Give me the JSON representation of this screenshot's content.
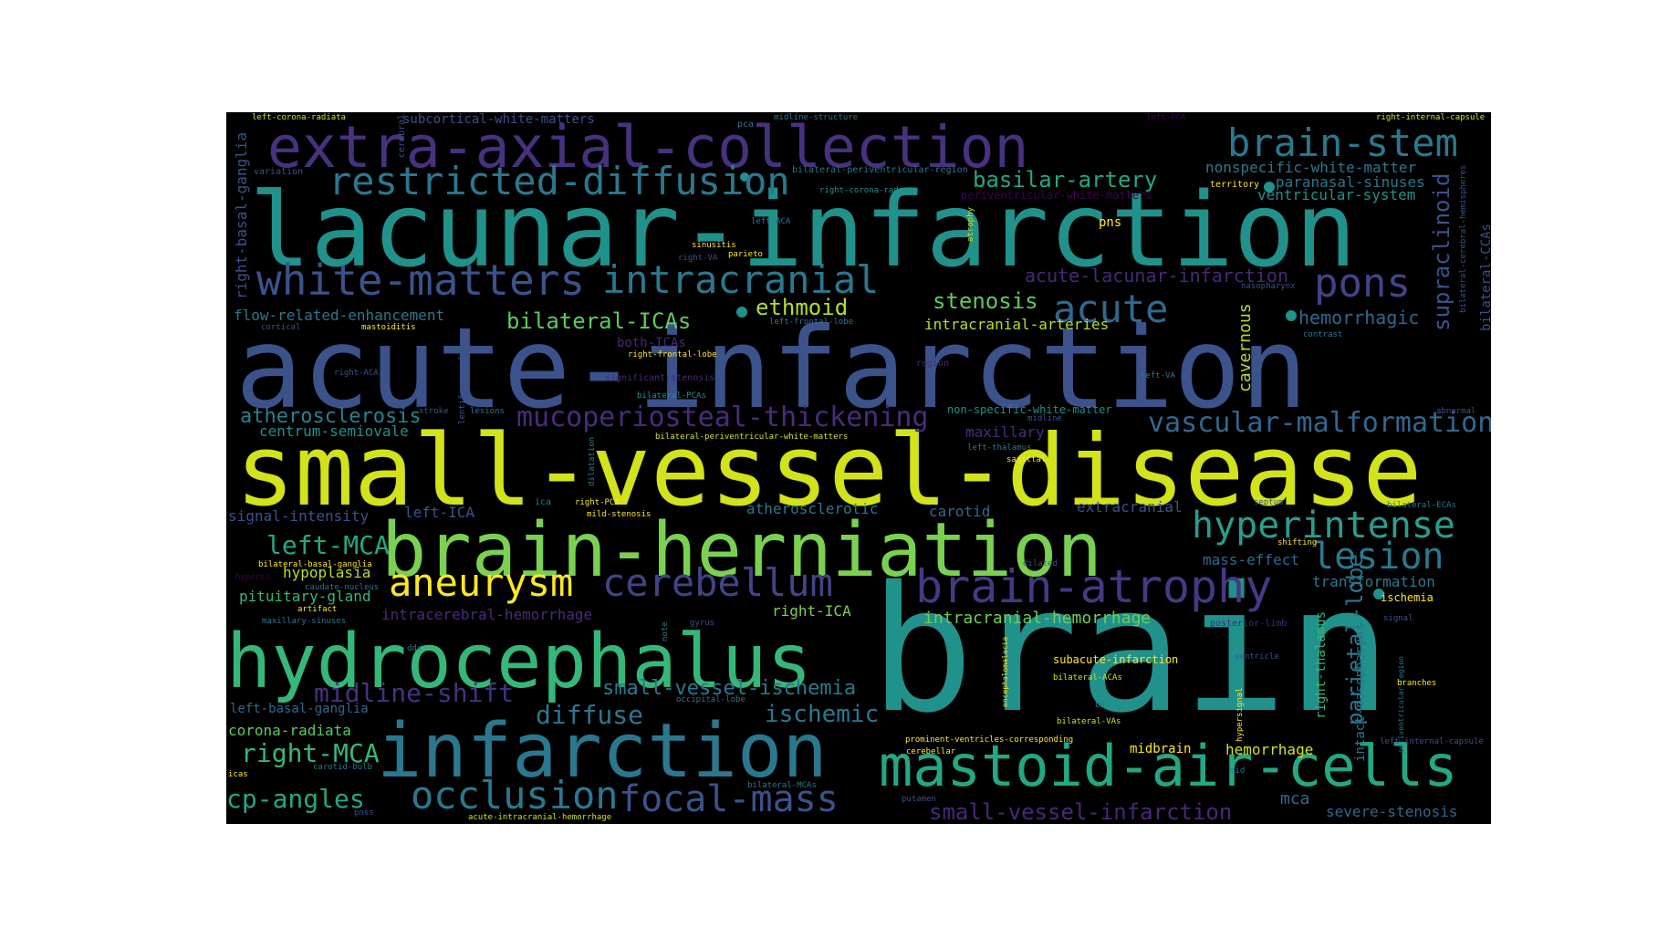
{
  "palette": {
    "background": "#000000",
    "colors": [
      "#440154",
      "#482878",
      "#3e4989",
      "#31688e",
      "#26828e",
      "#1f9e89",
      "#35b779",
      "#6ece58",
      "#b5de2b",
      "#fde725"
    ]
  },
  "words": [
    {
      "text": "brain",
      "color": "#21918c"
    },
    {
      "text": "small-vessel-disease",
      "color": "#d2e21b"
    },
    {
      "text": "acute-infarction",
      "color": "#3b528b"
    },
    {
      "text": "lacunar-infarction",
      "color": "#21918c"
    },
    {
      "text": "extra-axial-collection",
      "color": "#46327e"
    },
    {
      "text": "brain-herniation",
      "color": "#7ad151"
    },
    {
      "text": "hydrocephalus",
      "color": "#35b779"
    },
    {
      "text": "infarction",
      "color": "#2a788e"
    },
    {
      "text": "mastoid-air-cells",
      "color": "#22a884"
    },
    {
      "text": "brain-atrophy",
      "color": "#443983"
    },
    {
      "text": "white-matters",
      "color": "#3b528b"
    },
    {
      "text": "restricted-diffusion",
      "color": "#2a788e"
    },
    {
      "text": "intracranial",
      "color": "#2a788e"
    },
    {
      "text": "brain-stem",
      "color": "#2a788e"
    },
    {
      "text": "pons",
      "color": "#414487"
    },
    {
      "text": "acute",
      "color": "#31688e"
    },
    {
      "text": "aneurysm",
      "color": "#fde725"
    },
    {
      "text": "cerebellum",
      "color": "#414487"
    },
    {
      "text": "hyperintense",
      "color": "#2a9d8e"
    },
    {
      "text": "lesion",
      "color": "#2a788e"
    },
    {
      "text": "occlusion",
      "color": "#2a788e"
    },
    {
      "text": "focal-mass",
      "color": "#3b528b"
    },
    {
      "text": "vascular-malformation",
      "color": "#31688e"
    },
    {
      "text": "mucoperiosteal-thickening",
      "color": "#472d7b"
    },
    {
      "text": "midline-shift",
      "color": "#46327e"
    },
    {
      "text": "left-MCA",
      "color": "#22a884"
    },
    {
      "text": "right-MCA",
      "color": "#35b779"
    },
    {
      "text": "diffuse",
      "color": "#2a788e"
    },
    {
      "text": "ischemic",
      "color": "#2a788e"
    },
    {
      "text": "cp-angles",
      "color": "#22a884"
    },
    {
      "text": "basilar-artery",
      "color": "#22a884"
    },
    {
      "text": "stenosis",
      "color": "#5ec962"
    },
    {
      "text": "ethmoid",
      "color": "#b5de2b"
    },
    {
      "text": "bilateral-ICAs",
      "color": "#5ec962"
    },
    {
      "text": "atherosclerosis",
      "color": "#26828e"
    },
    {
      "text": "supraclinoid",
      "color": "#3b528b"
    },
    {
      "text": "parietal-lobe",
      "color": "#2a788e"
    },
    {
      "text": "hemorrhagic",
      "color": "#31688e"
    },
    {
      "text": "small-vessel-ischemia",
      "color": "#2a788e"
    },
    {
      "text": "small-vessel-infarction",
      "color": "#482878"
    },
    {
      "text": "intracranial-hemorrhage",
      "color": "#6ece58"
    },
    {
      "text": "acute-lacunar-infarction",
      "color": "#482878"
    },
    {
      "text": "nonspecific-white-matter",
      "color": "#2a788e"
    },
    {
      "text": "paranasal-sinuses",
      "color": "#2a788e"
    },
    {
      "text": "ventricular-system",
      "color": "#21918c"
    },
    {
      "text": "flow-related-enhancement",
      "color": "#2a788e"
    },
    {
      "text": "centrum-semiovale",
      "color": "#21918c"
    },
    {
      "text": "intracranial-arteries",
      "color": "#b5de2b"
    },
    {
      "text": "cavernous",
      "color": "#b5de2b"
    },
    {
      "text": "right-basal-ganglia",
      "color": "#3b528b"
    },
    {
      "text": "signal-intensity",
      "color": "#3b528b"
    },
    {
      "text": "left-ICA",
      "color": "#3b528b"
    },
    {
      "text": "right-ICA",
      "color": "#7ad151"
    },
    {
      "text": "carotid",
      "color": "#31688e"
    },
    {
      "text": "atherosclerotic",
      "color": "#2a788e"
    },
    {
      "text": "extracranial",
      "color": "#3b528b"
    },
    {
      "text": "mass-effect",
      "color": "#31688e"
    },
    {
      "text": "transformation",
      "color": "#2a788e"
    },
    {
      "text": "hypoplasia",
      "color": "#b5de2b"
    },
    {
      "text": "pituitary-gland",
      "color": "#35b779"
    },
    {
      "text": "intracerebral-hemorrhage",
      "color": "#472d7b"
    },
    {
      "text": "left-basal-ganglia",
      "color": "#31688e"
    },
    {
      "text": "corona-radiata",
      "color": "#5ec962"
    },
    {
      "text": "mca",
      "color": "#31688e"
    },
    {
      "text": "severe-stenosis",
      "color": "#31688e"
    },
    {
      "text": "hemorrhage",
      "color": "#d2e21b"
    },
    {
      "text": "midbrain",
      "color": "#fde725"
    },
    {
      "text": "right-thalamus",
      "color": "#35b779"
    },
    {
      "text": "intact-nasopharynx",
      "color": "#2a788e"
    },
    {
      "text": "maxillary",
      "color": "#472d7b"
    },
    {
      "text": "subacute-infarction",
      "color": "#fde725"
    },
    {
      "text": "both-ICAs",
      "color": "#482878"
    },
    {
      "text": "non-specific-white-matter",
      "color": "#21918c"
    },
    {
      "text": "subcortical-white-matters",
      "color": "#3b528b"
    },
    {
      "text": "bilateral-CCAs",
      "color": "#3b528b"
    },
    {
      "text": "ischemia",
      "color": "#fde725"
    },
    {
      "text": "pns",
      "color": "#fde725"
    },
    {
      "text": "territory",
      "color": "#fde725"
    },
    {
      "text": "left-corona-radiata",
      "color": "#d2e21b"
    },
    {
      "text": "cerebral",
      "color": "#3b528b"
    },
    {
      "text": "midline-structure",
      "color": "#2a788e"
    },
    {
      "text": "pca",
      "color": "#2a788e"
    },
    {
      "text": "right-internal-capsule",
      "color": "#d2e21b"
    },
    {
      "text": "left-PCA",
      "color": "#440154"
    },
    {
      "text": "variation",
      "color": "#3b528b"
    },
    {
      "text": "bilateral-periventricular-region",
      "color": "#2a788e"
    },
    {
      "text": "right-corona-radiata",
      "color": "#21918c"
    },
    {
      "text": "periventricular-white-matters",
      "color": "#440154"
    },
    {
      "text": "bilateral-cerebral-hemispheres",
      "color": "#3b528b"
    },
    {
      "text": "left-ACA",
      "color": "#2a788e"
    },
    {
      "text": "atrophy",
      "color": "#d2e21b"
    },
    {
      "text": "sinusitis",
      "color": "#fde725"
    },
    {
      "text": "right-VA",
      "color": "#3b528b"
    },
    {
      "text": "parieto",
      "color": "#fde725"
    },
    {
      "text": "left-frontal-lobe",
      "color": "#2a788e"
    },
    {
      "text": "nasopharynx",
      "color": "#3b528b"
    },
    {
      "text": "contrast",
      "color": "#2a788e"
    },
    {
      "text": "mastoiditis",
      "color": "#fde725"
    },
    {
      "text": "cortical",
      "color": "#3b528b"
    },
    {
      "text": "right-frontal-lobe",
      "color": "#fde725"
    },
    {
      "text": "right-ACA",
      "color": "#3b528b"
    },
    {
      "text": "significant-stenosis",
      "color": "#482878"
    },
    {
      "text": "region",
      "color": "#482878"
    },
    {
      "text": "left-VA",
      "color": "#2a788e"
    },
    {
      "text": "lentiform-nucleus",
      "color": "#3b528b"
    },
    {
      "text": "stroke",
      "color": "#3b528b"
    },
    {
      "text": "lesions",
      "color": "#2a788e"
    },
    {
      "text": "bilateral-PCAs",
      "color": "#21918c"
    },
    {
      "text": "midline",
      "color": "#3b528b"
    },
    {
      "text": "abnormal",
      "color": "#3b528b"
    },
    {
      "text": "bilateral-periventricular-white-matters",
      "color": "#d2e21b"
    },
    {
      "text": "left-thalamus",
      "color": "#2a788e"
    },
    {
      "text": "sagittal",
      "color": "#fde725"
    },
    {
      "text": "dilatation",
      "color": "#2a788e"
    },
    {
      "text": "ica",
      "color": "#2a788e"
    },
    {
      "text": "right-PCA",
      "color": "#fde725"
    },
    {
      "text": "mild-stenosis",
      "color": "#fde725"
    },
    {
      "text": "septum",
      "color": "#3b528b"
    },
    {
      "text": "bilateral-ECAs",
      "color": "#2a788e"
    },
    {
      "text": "bilateral-basal-ganglia",
      "color": "#fde725"
    },
    {
      "text": "shifting",
      "color": "#fde725"
    },
    {
      "text": "dilated",
      "color": "#3b528b"
    },
    {
      "text": "hypersi",
      "color": "#440154"
    },
    {
      "text": "caudate-nucleus",
      "color": "#2a788e"
    },
    {
      "text": "artifact",
      "color": "#fde725"
    },
    {
      "text": "maxillary-sinuses",
      "color": "#2a788e"
    },
    {
      "text": "gyrus",
      "color": "#3b528b"
    },
    {
      "text": "note",
      "color": "#2a788e"
    },
    {
      "text": "posterior-limb",
      "color": "#482878"
    },
    {
      "text": "signal",
      "color": "#3b528b"
    },
    {
      "text": "ddx",
      "color": "#2a788e"
    },
    {
      "text": "encephalomalacia",
      "color": "#fde725"
    },
    {
      "text": "bilateral-ACAs",
      "color": "#d2e21b"
    },
    {
      "text": "ventricle",
      "color": "#3b528b"
    },
    {
      "text": "occipital-lobe",
      "color": "#2a788e"
    },
    {
      "text": "ba",
      "color": "#2a788e"
    },
    {
      "text": "periventricular-region",
      "color": "#2a788e"
    },
    {
      "text": "branches",
      "color": "#fde725"
    },
    {
      "text": "hypersignal",
      "color": "#fde725"
    },
    {
      "text": "bilateral-VAs",
      "color": "#d2e21b"
    },
    {
      "text": "prominent-ventricles-corresponding",
      "color": "#fde725"
    },
    {
      "text": "cerebellar",
      "color": "#fde725"
    },
    {
      "text": "left-internal-capsule",
      "color": "#3b528b"
    },
    {
      "text": "carotid-bulb",
      "color": "#2a788e"
    },
    {
      "text": "icas",
      "color": "#fde725"
    },
    {
      "text": "bilateral-MCAs",
      "color": "#2a788e"
    },
    {
      "text": "putamen",
      "color": "#3b528b"
    },
    {
      "text": "mid",
      "color": "#2a788e"
    },
    {
      "text": "pnss",
      "color": "#3b528b"
    },
    {
      "text": "acute-intracranial-hemorrhage",
      "color": "#d2e21b"
    }
  ]
}
